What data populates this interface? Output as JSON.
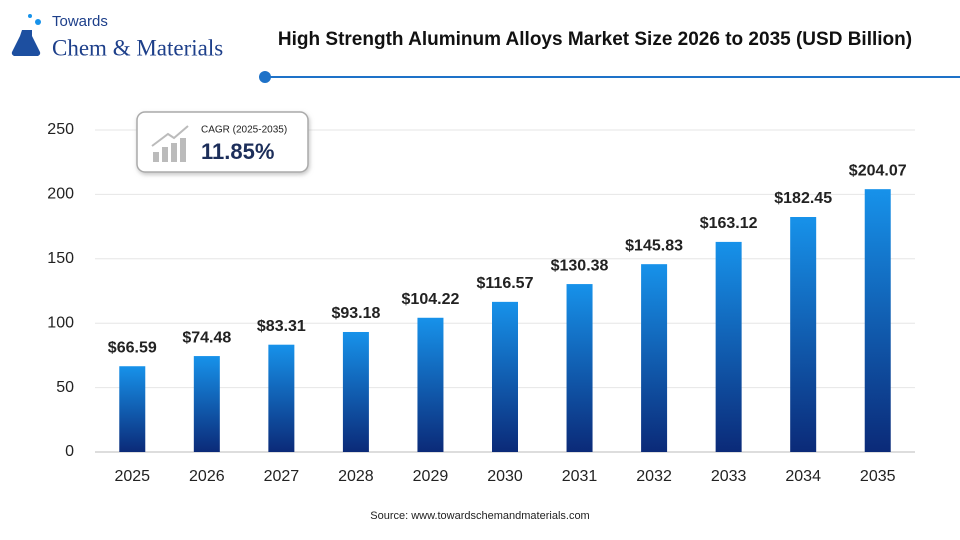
{
  "logo": {
    "line1": "Towards",
    "line2": "Chem & Materials"
  },
  "chart_data": {
    "type": "bar",
    "title": "High Strength Aluminum Alloys Market Size 2026 to 2035 (USD Billion)",
    "source": "Source: www.towardschemandmaterials.com",
    "annotation": {
      "label": "CAGR (2025-2035)",
      "value": "11.85%"
    },
    "categories": [
      "2025",
      "2026",
      "2027",
      "2028",
      "2029",
      "2030",
      "2031",
      "2032",
      "2033",
      "2034",
      "2035"
    ],
    "values": [
      66.59,
      74.48,
      83.31,
      93.18,
      104.22,
      116.57,
      130.38,
      145.83,
      163.12,
      182.45,
      204.07
    ],
    "value_labels": [
      "$66.59",
      "$74.48",
      "$83.31",
      "$93.18",
      "$104.22",
      "$116.57",
      "$130.38",
      "$145.83",
      "$163.12",
      "$182.45",
      "$204.07"
    ],
    "color": "#1792ea",
    "ylim": [
      0,
      250
    ],
    "yticks": [
      0,
      50,
      100,
      150,
      200,
      250
    ],
    "grid": true
  }
}
